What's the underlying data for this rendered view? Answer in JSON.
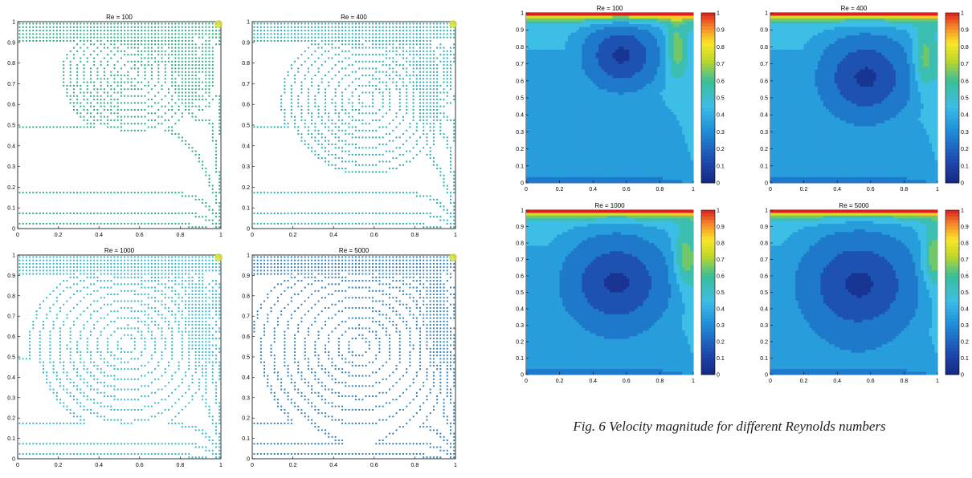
{
  "caption": "Fig. 6 Velocity magnitude for different Reynolds numbers",
  "chart_data": [
    {
      "type": "contour",
      "style": "lines",
      "title": "Re = 100",
      "line_color": "#22a87a",
      "xlim": [
        0,
        1
      ],
      "ylim": [
        0,
        1
      ],
      "xticks": [
        "0",
        "0.2",
        "0.4",
        "0.6",
        "0.8",
        "1"
      ],
      "yticks": [
        "0",
        "0.1",
        "0.2",
        "0.3",
        "0.4",
        "0.5",
        "0.6",
        "0.7",
        "0.8",
        "0.9",
        "1"
      ]
    },
    {
      "type": "contour",
      "style": "lines",
      "title": "Re = 400",
      "line_color": "#22a8b0",
      "xlim": [
        0,
        1
      ],
      "ylim": [
        0,
        1
      ],
      "xticks": [
        "0",
        "0.2",
        "0.4",
        "0.6",
        "0.8",
        "1"
      ],
      "yticks": [
        "0",
        "0.1",
        "0.2",
        "0.3",
        "0.4",
        "0.5",
        "0.6",
        "0.7",
        "0.8",
        "0.9",
        "1"
      ]
    },
    {
      "type": "contour",
      "style": "lines",
      "title": "Re = 1000",
      "line_color": "#26b4cc",
      "xlim": [
        0,
        1
      ],
      "ylim": [
        0,
        1
      ],
      "xticks": [
        "0",
        "0.2",
        "0.4",
        "0.6",
        "0.8",
        "1"
      ],
      "yticks": [
        "0",
        "0.1",
        "0.2",
        "0.3",
        "0.4",
        "0.5",
        "0.6",
        "0.7",
        "0.8",
        "0.9",
        "1"
      ]
    },
    {
      "type": "contour",
      "style": "lines",
      "title": "Re = 5000",
      "line_color": "#2479b8",
      "xlim": [
        0,
        1
      ],
      "ylim": [
        0,
        1
      ],
      "xticks": [
        "0",
        "0.2",
        "0.4",
        "0.6",
        "0.8",
        "1"
      ],
      "yticks": [
        "0",
        "0.1",
        "0.2",
        "0.3",
        "0.4",
        "0.5",
        "0.6",
        "0.7",
        "0.8",
        "0.9",
        "1"
      ]
    },
    {
      "type": "contour",
      "style": "filled",
      "title": "Re = 100",
      "xlim": [
        0,
        1
      ],
      "ylim": [
        0,
        1
      ],
      "xticks": [
        "0",
        "0.2",
        "0.4",
        "0.6",
        "0.8",
        "1"
      ],
      "yticks": [
        "0",
        "0.1",
        "0.2",
        "0.3",
        "0.4",
        "0.5",
        "0.6",
        "0.7",
        "0.8",
        "0.9",
        "1"
      ],
      "colorbar_ticks": [
        "0",
        "0.1",
        "0.2",
        "0.3",
        "0.4",
        "0.5",
        "0.6",
        "0.7",
        "0.8",
        "0.9",
        "1"
      ]
    },
    {
      "type": "contour",
      "style": "filled",
      "title": "Re = 400",
      "xlim": [
        0,
        1
      ],
      "ylim": [
        0,
        1
      ],
      "xticks": [
        "0",
        "0.2",
        "0.4",
        "0.6",
        "0.8",
        "1"
      ],
      "yticks": [
        "0",
        "0.1",
        "0.2",
        "0.3",
        "0.4",
        "0.5",
        "0.6",
        "0.7",
        "0.8",
        "0.9",
        "1"
      ],
      "colorbar_ticks": [
        "0",
        "0.1",
        "0.2",
        "0.3",
        "0.4",
        "0.5",
        "0.6",
        "0.7",
        "0.8",
        "0.9",
        "1"
      ]
    },
    {
      "type": "contour",
      "style": "filled",
      "title": "Re = 1000",
      "xlim": [
        0,
        1
      ],
      "ylim": [
        0,
        1
      ],
      "xticks": [
        "0",
        "0.2",
        "0.4",
        "0.6",
        "0.8",
        "1"
      ],
      "yticks": [
        "0",
        "0.1",
        "0.2",
        "0.3",
        "0.4",
        "0.5",
        "0.6",
        "0.7",
        "0.8",
        "0.9",
        "1"
      ],
      "colorbar_ticks": [
        "0",
        "0.1",
        "0.2",
        "0.3",
        "0.4",
        "0.5",
        "0.6",
        "0.7",
        "0.8",
        "0.9",
        "1"
      ]
    },
    {
      "type": "contour",
      "style": "filled",
      "title": "Re = 5000",
      "xlim": [
        0,
        1
      ],
      "ylim": [
        0,
        1
      ],
      "xticks": [
        "0",
        "0.2",
        "0.4",
        "0.6",
        "0.8",
        "1"
      ],
      "yticks": [
        "0",
        "0.1",
        "0.2",
        "0.3",
        "0.4",
        "0.5",
        "0.6",
        "0.7",
        "0.8",
        "0.9",
        "1"
      ],
      "colorbar_ticks": [
        "0",
        "0.1",
        "0.2",
        "0.3",
        "0.4",
        "0.5",
        "0.6",
        "0.7",
        "0.8",
        "0.9",
        "1"
      ]
    }
  ]
}
